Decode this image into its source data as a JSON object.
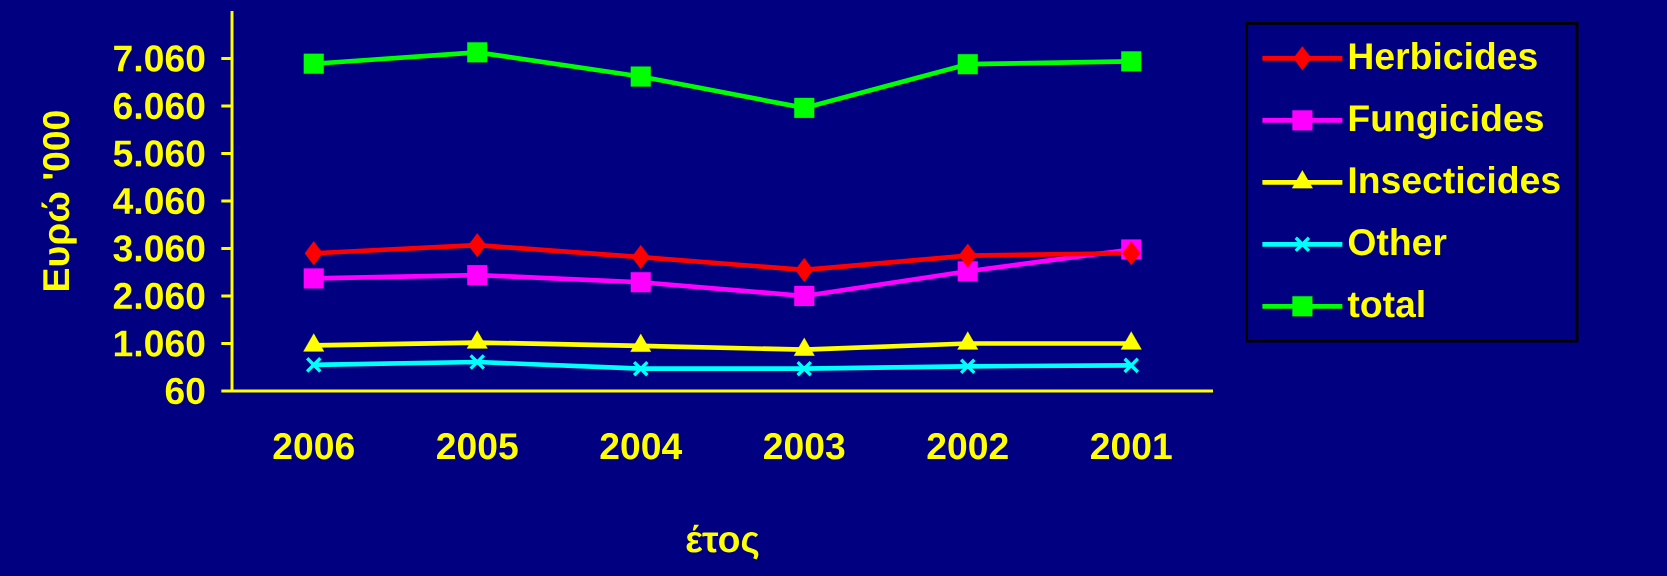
{
  "chart_data": {
    "type": "line",
    "xlabel": "έτος",
    "ylabel": "Ευρώ   '000",
    "categories": [
      "2006",
      "2005",
      "2004",
      "2003",
      "2002",
      "2001"
    ],
    "ylim": [
      60,
      8060
    ],
    "yticks": [
      60,
      {
        "value": 1060,
        "label": "1.060"
      },
      {
        "value": 2060,
        "label": "2.060"
      },
      {
        "value": 3060,
        "label": "3.060"
      },
      {
        "value": 4060,
        "label": "4.060"
      },
      {
        "value": 5060,
        "label": "5.060"
      },
      {
        "value": 6060,
        "label": "6.060"
      },
      {
        "value": 7060,
        "label": "7.060"
      }
    ],
    "legend": "right",
    "grid": false,
    "series": [
      {
        "name": "Herbicides",
        "color": "#ff0000",
        "marker": "diamond",
        "values": [
          2960,
          3130,
          2880,
          2610,
          2910,
          2960
        ]
      },
      {
        "name": "Fungicides",
        "color": "#ff00ff",
        "marker": "square",
        "values": [
          2430,
          2500,
          2350,
          2060,
          2580,
          3040
        ]
      },
      {
        "name": "Insecticides",
        "color": "#ffff00",
        "marker": "triangle",
        "values": [
          1020,
          1080,
          1010,
          930,
          1060,
          1060
        ]
      },
      {
        "name": "Other",
        "color": "#00ffff",
        "marker": "cross",
        "values": [
          610,
          670,
          530,
          530,
          580,
          600
        ]
      },
      {
        "name": "total",
        "color": "#00ff00",
        "marker": "square",
        "values": [
          6950,
          7190,
          6680,
          6020,
          6940,
          7000
        ]
      }
    ]
  }
}
